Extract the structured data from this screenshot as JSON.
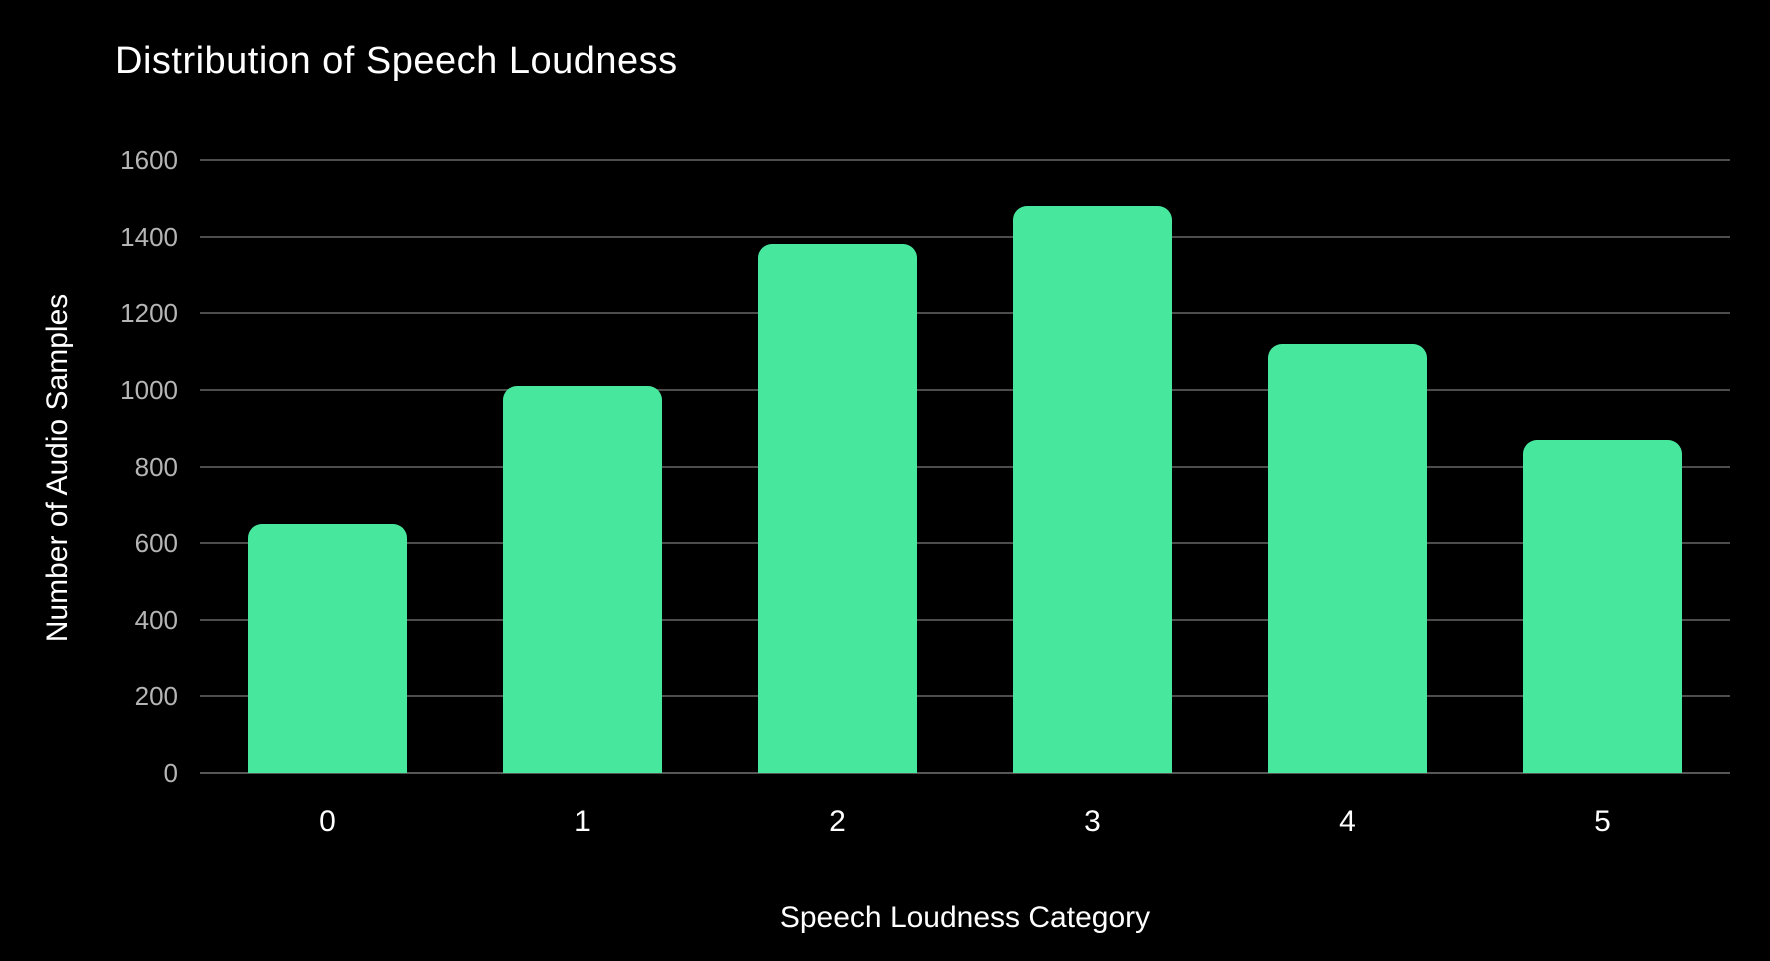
{
  "window": {
    "background_color": "#000000"
  },
  "chart_data": {
    "type": "bar",
    "title": "Distribution of Speech Loudness",
    "xlabel": "Speech Loudness Category",
    "ylabel": "Number of Audio Samples",
    "categories": [
      "0",
      "1",
      "2",
      "3",
      "4",
      "5"
    ],
    "values": [
      650,
      1010,
      1380,
      1480,
      1120,
      870
    ],
    "ylim": [
      0,
      1600
    ],
    "ytick_step": 200,
    "yticks": [
      0,
      200,
      400,
      600,
      800,
      1000,
      1200,
      1400,
      1600
    ],
    "grid": "horizontal-only",
    "legend": "none",
    "bar_corner_style": "rounded-top",
    "colors": {
      "background": "#000000",
      "bar_fill": "#47E79E",
      "gridline": "#4d4d4d",
      "axis_line": "#565656",
      "y_tick_text": "#b5b5b5",
      "x_tick_text": "#ffffff",
      "title_text": "#ffffff",
      "axis_title_text": "#ffffff"
    }
  }
}
